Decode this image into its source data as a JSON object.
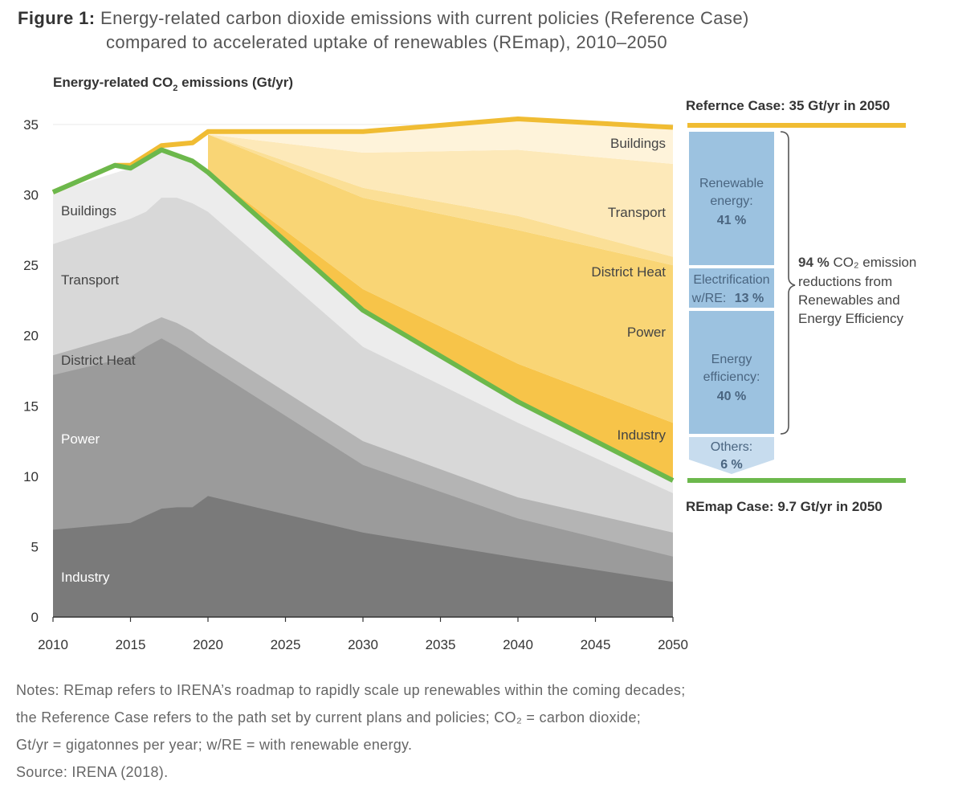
{
  "figure": {
    "label": "Figure 1:",
    "title_line1": "Energy-related carbon dioxide emissions with current policies (Reference Case)",
    "title_line2": "compared to accelerated uptake of renewables (REmap), 2010–2050"
  },
  "chart_data": {
    "type": "area",
    "ylabel": "Energy-related CO₂ emissions (Gt/yr)",
    "ylim": [
      0,
      35
    ],
    "xlim": [
      2010,
      2050
    ],
    "y_ticks": [
      0,
      5,
      10,
      15,
      20,
      25,
      30,
      35
    ],
    "x_ticks": [
      2010,
      2015,
      2020,
      2025,
      2030,
      2035,
      2040,
      2045,
      2050
    ],
    "grid": true,
    "colors": {
      "industry": "#7a7a7a",
      "power": "#9b9b9b",
      "district_heat": "#b4b4b4",
      "transport": "#d8d8d8",
      "buildings": "#ececec",
      "remap_line": "#6cb84c",
      "reference_line": "#f0bc33",
      "gap_industry": "#f7c449",
      "gap_power": "#f9d575",
      "gap_district": "#fbdf96",
      "gap_transport": "#fde9b9",
      "gap_buildings": "#fef3da",
      "breakdown_box": "#9cc2e0",
      "breakdown_text": "#4a6580"
    },
    "stack_labels_left": [
      "Buildings",
      "Transport",
      "District Heat",
      "Power",
      "Industry"
    ],
    "gap_labels_right": [
      "Buildings",
      "Transport",
      "District Heat",
      "Power",
      "Industry"
    ],
    "stack_x": [
      2010,
      2015,
      2016,
      2017,
      2018,
      2019,
      2020,
      2030,
      2040,
      2050
    ],
    "stack_series": [
      {
        "name": "Industry",
        "values": [
          6.2,
          6.7,
          7.2,
          7.7,
          7.8,
          7.8,
          8.6,
          6.0,
          4.2,
          2.5
        ]
      },
      {
        "name": "Power",
        "values": [
          17.2,
          18.5,
          19.2,
          19.8,
          19.2,
          18.5,
          17.8,
          10.8,
          7.0,
          4.3
        ]
      },
      {
        "name": "District Heat",
        "values": [
          18.6,
          20.2,
          20.8,
          21.3,
          20.9,
          20.3,
          19.5,
          12.5,
          8.5,
          6.0
        ]
      },
      {
        "name": "Transport",
        "values": [
          26.5,
          28.3,
          28.8,
          29.8,
          29.8,
          29.4,
          28.8,
          19.2,
          13.8,
          8.8
        ]
      },
      {
        "name": "Buildings",
        "values": [
          30.2,
          31.9,
          32.5,
          33.2,
          33.0,
          32.4,
          31.6,
          21.8,
          15.3,
          9.7
        ]
      }
    ],
    "gap_x": [
      2020,
      2030,
      2040,
      2050
    ],
    "gap_boundaries": [
      {
        "name": "Industry",
        "values": [
          31.6,
          23.3,
          18.0,
          13.8
        ]
      },
      {
        "name": "Power",
        "values": [
          34.3,
          29.8,
          27.5,
          25.0
        ]
      },
      {
        "name": "District Heat",
        "values": [
          34.3,
          30.5,
          28.5,
          25.6
        ]
      },
      {
        "name": "Transport",
        "values": [
          34.3,
          33.0,
          33.2,
          32.2
        ]
      }
    ],
    "reference_case": {
      "x": [
        2010,
        2014,
        2015,
        2017,
        2019,
        2020,
        2030,
        2040,
        2050
      ],
      "values": [
        30.2,
        32.1,
        32.1,
        33.5,
        33.7,
        34.5,
        34.5,
        35.4,
        34.8
      ]
    },
    "remap_case": {
      "x": [
        2010,
        2014,
        2015,
        2017,
        2019,
        2020,
        2030,
        2040,
        2050
      ],
      "values": [
        30.2,
        32.1,
        31.9,
        33.2,
        32.4,
        31.6,
        21.8,
        15.3,
        9.7
      ]
    },
    "reference_label": "Refernce Case: 35 Gt/yr in 2050",
    "remap_label": "REmap Case: 9.7 Gt/yr in 2050",
    "breakdown": [
      {
        "line1": "Renewable",
        "line2": "energy:",
        "value": "41 %"
      },
      {
        "line1": "Electrification",
        "line2": "w/RE:",
        "value": "13 %"
      },
      {
        "line1": "Energy",
        "line2": "efficiency:",
        "value": "40 %"
      },
      {
        "line1": "Others:",
        "value": "6 %"
      }
    ],
    "bracket_note": {
      "bold": "94 %",
      "line1_rest": " CO₂ emission",
      "line2": "reductions from",
      "line3": "Renewables and",
      "line4": "Energy Efficiency"
    }
  },
  "notes": [
    "Notes: REmap refers to IRENA’s roadmap to rapidly scale up renewables within the coming decades;",
    "the Reference Case refers to the path set by current plans and policies; CO₂ = carbon dioxide;",
    "Gt/yr = gigatonnes per year; w/RE = with renewable energy.",
    "Source: IRENA (2018)."
  ]
}
